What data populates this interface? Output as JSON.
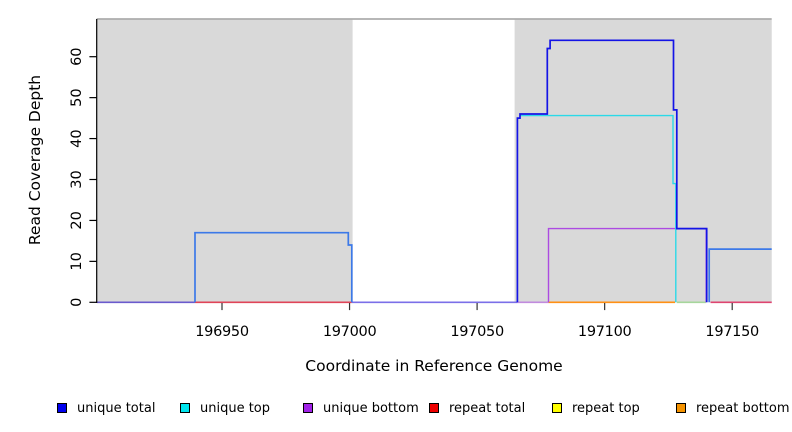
{
  "chart_data": {
    "type": "step-line",
    "title": "",
    "xlabel": "Coordinate in Reference Genome",
    "ylabel": "Read Coverage Depth",
    "x_ticks": [
      196950,
      197000,
      197050,
      197100,
      197150
    ],
    "y_ticks": [
      0,
      10,
      20,
      30,
      40,
      50,
      60
    ],
    "x_range": [
      196901,
      197165.5
    ],
    "y_range": [
      0,
      69.2
    ],
    "grid": "off",
    "background_shading": {
      "color": "#D9D9D9",
      "regions": [
        {
          "name": "left-shaded-region",
          "x_start": 196901,
          "x_end": 197001.2
        },
        {
          "name": "right-shaded-region",
          "x_start": 197064.7,
          "x_end": 197165.5
        }
      ]
    },
    "series": [
      {
        "id": "unique-bottom",
        "legend_name": "unique bottom",
        "render_color": "#AC4BE2",
        "width": 1.4,
        "points": [
          [
            197078,
            0
          ],
          [
            197078,
            18
          ],
          [
            197139.8,
            18
          ],
          [
            197139.8,
            0
          ]
        ]
      },
      {
        "id": "unique-top",
        "legend_name": "unique top",
        "render_color": "#2BD9E8",
        "width": 1.4,
        "points": [
          [
            197066.8,
            45.6
          ],
          [
            197126.8,
            45.6
          ],
          [
            197126.8,
            29
          ],
          [
            197127.9,
            29
          ],
          [
            197127.9,
            0
          ]
        ]
      },
      {
        "id": "unique-total-left",
        "legend_name": "unique total",
        "render_color": "#3C79E8",
        "width": 1.7,
        "points": [
          [
            196939.4,
            0
          ],
          [
            196939.4,
            17
          ],
          [
            196999.5,
            17
          ],
          [
            196999.5,
            14
          ],
          [
            197000.9,
            14
          ],
          [
            197000.9,
            0
          ]
        ]
      },
      {
        "id": "unique-total-peak",
        "legend_name": "unique total",
        "render_color": "#1414E6",
        "width": 1.7,
        "points": [
          [
            197065.8,
            0
          ],
          [
            197065.8,
            45
          ],
          [
            197066.8,
            45
          ],
          [
            197066.8,
            46
          ],
          [
            197077.5,
            46
          ],
          [
            197077.5,
            62
          ],
          [
            197078.6,
            62
          ],
          [
            197078.6,
            64
          ],
          [
            197127,
            64
          ],
          [
            197127,
            47
          ],
          [
            197128.3,
            47
          ],
          [
            197128.3,
            18
          ],
          [
            197140,
            18
          ],
          [
            197140,
            0
          ]
        ]
      },
      {
        "id": "unique-total-right",
        "legend_name": "unique total",
        "render_color": "#3C79E8",
        "width": 1.7,
        "points": [
          [
            197141,
            0
          ],
          [
            197141,
            13
          ],
          [
            197165.5,
            13
          ]
        ]
      }
    ],
    "zero_line_segments": [
      {
        "x_start": 196901,
        "x_end": 196939.4,
        "color": "#6A5ACD"
      },
      {
        "x_start": 196939.4,
        "x_end": 197000.9,
        "color": "#E04458"
      },
      {
        "x_start": 197000.9,
        "x_end": 197065.8,
        "color": "#7B6FE8"
      },
      {
        "x_start": 197065.8,
        "x_end": 197078,
        "color": "#C18BDE"
      },
      {
        "x_start": 197078,
        "x_end": 197127.6,
        "color": "#FF9014"
      },
      {
        "x_start": 197128.3,
        "x_end": 197139.7,
        "color": "#A6D69C"
      },
      {
        "x_start": 197141.5,
        "x_end": 197165.5,
        "color": "#DE4470"
      }
    ],
    "legend": {
      "position": "bottom",
      "items": [
        {
          "label": "unique total",
          "color": "#0000EE"
        },
        {
          "label": "unique top",
          "color": "#00E5EE"
        },
        {
          "label": "unique bottom",
          "color": "#A122E8"
        },
        {
          "label": "repeat total",
          "color": "#EE0000"
        },
        {
          "label": "repeat top",
          "color": "#FFFF00"
        },
        {
          "label": "repeat bottom",
          "color": "#F59300"
        }
      ]
    }
  }
}
